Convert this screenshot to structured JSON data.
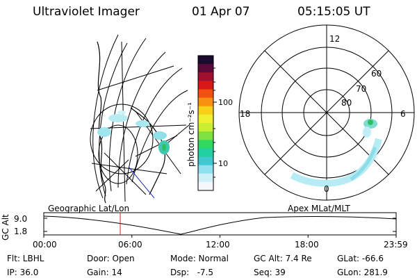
{
  "header": {
    "instrument": "Ultraviolet Imager",
    "date": "01 Apr 07",
    "time": "05:15:05 UT"
  },
  "colorbar": {
    "label": "photon cm⁻²s⁻¹",
    "ticks": [
      "100",
      "10"
    ],
    "colors": [
      "#1a0a2e",
      "#5a0a3a",
      "#a01030",
      "#d81818",
      "#f05010",
      "#f89010",
      "#f8d018",
      "#f0f030",
      "#c8f030",
      "#80e040",
      "#30d860",
      "#20d0a0",
      "#40c8d0",
      "#90e0f0",
      "#d0f0f8",
      "#f4f8fc"
    ]
  },
  "polar": {
    "mlt_labels": {
      "top": "12",
      "left": "18",
      "right": "6",
      "bottom": "0"
    },
    "lat_labels": [
      "60",
      "70",
      "80"
    ]
  },
  "timeline": {
    "y_axis_label": "GC Alt",
    "y_ticks": [
      "9.0",
      "1.8"
    ],
    "left_label": "Geographic Lat/Lon",
    "right_label": "Apex MLat/MLT",
    "x_ticks": [
      "00:00",
      "06:00",
      "12:00",
      "18:00",
      "23:59"
    ],
    "marker_time": "05:15"
  },
  "info": {
    "row1": [
      {
        "key": "flt",
        "text": "Flt: LBHL"
      },
      {
        "key": "door",
        "text": "Door: Open"
      },
      {
        "key": "mode",
        "text": "Mode: Normal"
      },
      {
        "key": "gcalt",
        "text": "GC Alt: 7.4 Re"
      },
      {
        "key": "glat",
        "text": "GLat: -66.6"
      }
    ],
    "row2": [
      {
        "key": "ip",
        "text": "IP: 36.0"
      },
      {
        "key": "gain",
        "text": "Gain: 14"
      },
      {
        "key": "dsp",
        "text": "Dsp:   -7.5"
      },
      {
        "key": "seq",
        "text": "Seq: 39"
      },
      {
        "key": "glon",
        "text": "GLon: 281.9"
      }
    ]
  }
}
